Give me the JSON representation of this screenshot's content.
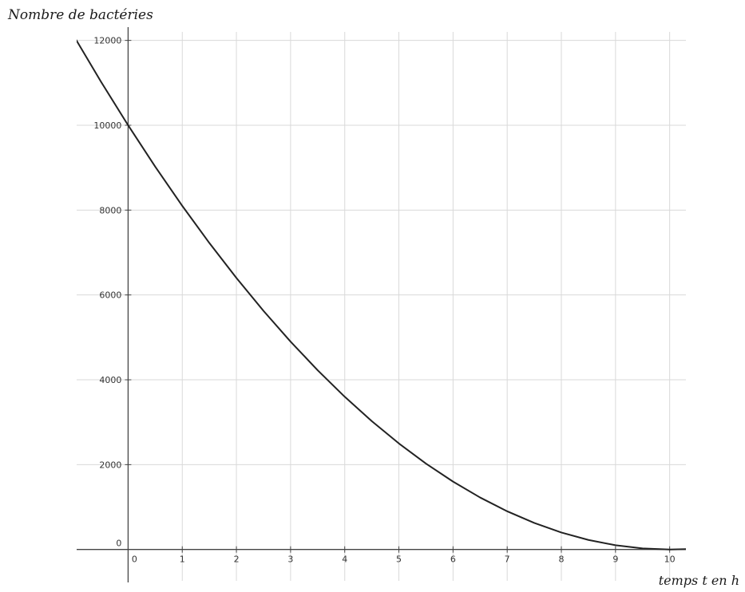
{
  "chart_data": {
    "type": "line",
    "xlabel": "temps t en h",
    "ylabel": "Nombre de bactéries",
    "xlim": [
      -0.95,
      10.3
    ],
    "ylim": [
      -250,
      12200
    ],
    "x_ticks": [
      0,
      1,
      2,
      3,
      4,
      5,
      6,
      7,
      8,
      9,
      10
    ],
    "y_ticks": [
      0,
      2000,
      4000,
      6000,
      8000,
      10000,
      12000
    ],
    "grid": true,
    "series": [
      {
        "color": "#222222",
        "x": [
          -1,
          -0.5,
          0,
          0.5,
          1,
          1.5,
          2,
          2.5,
          3,
          3.5,
          4,
          4.5,
          5,
          5.5,
          6,
          6.5,
          7,
          7.5,
          8,
          8.5,
          9,
          9.5,
          10,
          10.3
        ],
        "y": [
          12100,
          11025,
          10000,
          9025,
          8100,
          7225,
          6400,
          5625,
          4900,
          4225,
          3600,
          3025,
          2500,
          2025,
          1600,
          1225,
          900,
          625,
          400,
          225,
          100,
          25,
          0,
          9
        ]
      }
    ]
  }
}
